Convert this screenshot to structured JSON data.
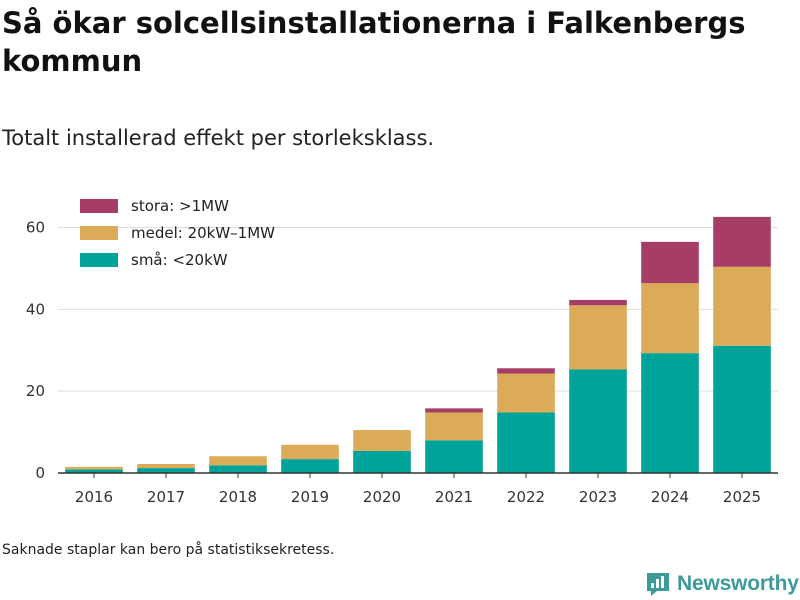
{
  "title": "Så ökar solcellsinstallationerna i Falkenbergs kommun",
  "subtitle": "Totalt installerad effekt per storleksklass.",
  "note": "Saknade staplar kan bero på statistiksekretess.",
  "brand": {
    "name": "Newsworthy",
    "icon": "newsworthy-logo-icon"
  },
  "colors": {
    "stora": "#a63d66",
    "medel": "#dbab57",
    "sma": "#00a39a",
    "grid": "#dddddd",
    "axis": "#333333",
    "brand": "#3d9a9a"
  },
  "chart_data": {
    "type": "bar",
    "stacked": true,
    "title": "Så ökar solcellsinstallationerna i Falkenbergs kommun",
    "subtitle": "Totalt installerad effekt per storleksklass.",
    "xlabel": "",
    "ylabel": "",
    "ylim": [
      0,
      66
    ],
    "yticks": [
      0,
      20,
      40,
      60
    ],
    "grid": true,
    "legend": "top-left",
    "categories": [
      "2016",
      "2017",
      "2018",
      "2019",
      "2020",
      "2021",
      "2022",
      "2023",
      "2024",
      "2025"
    ],
    "series": [
      {
        "key": "sma",
        "name": "små: <20kW",
        "color": "#00a39a",
        "values": [
          0.9,
          1.2,
          1.9,
          3.4,
          5.4,
          8.0,
          14.8,
          25.3,
          29.3,
          31.1
        ]
      },
      {
        "key": "medel",
        "name": "medel: 20kW–1MW",
        "color": "#dbab57",
        "values": [
          0.6,
          1.0,
          2.2,
          3.5,
          5.1,
          6.8,
          9.5,
          15.7,
          17.1,
          19.3
        ]
      },
      {
        "key": "stora",
        "name": "stora: >1MW",
        "color": "#a63d66",
        "values": [
          0,
          0,
          0,
          0,
          0,
          1.0,
          1.3,
          1.3,
          10.1,
          12.2
        ]
      }
    ],
    "legend_order": [
      "stora",
      "medel",
      "sma"
    ]
  }
}
